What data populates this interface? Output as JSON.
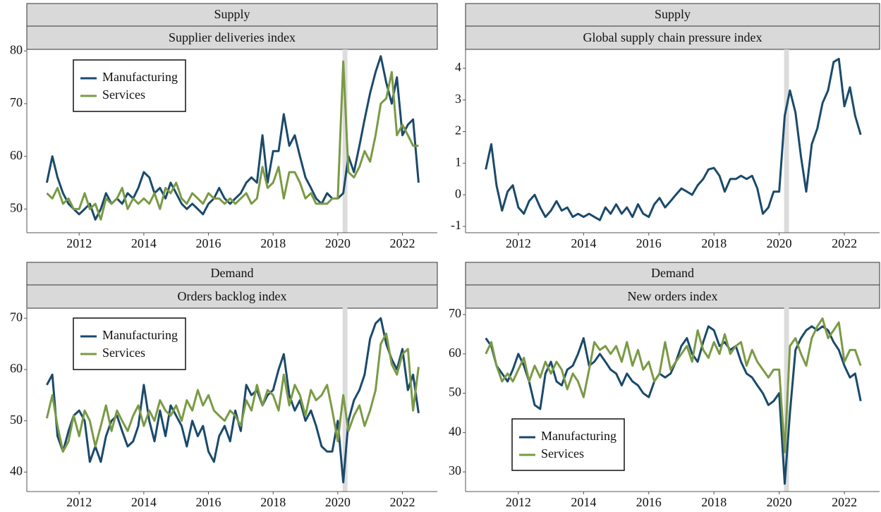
{
  "chart_data": [
    {
      "type": "line",
      "title": "Supply",
      "subtitle": "Supplier deliveries index",
      "legend": "upper left",
      "highlight_x": [
        2020.15,
        2020.3
      ],
      "xlim": [
        2010.38,
        2023.08
      ],
      "xticks": [
        2012,
        2014,
        2016,
        2018,
        2020,
        2022
      ],
      "ylim": [
        45.5,
        80.3
      ],
      "yticks": [
        50,
        60,
        70,
        80
      ],
      "x": [
        2011,
        2011.17,
        2011.33,
        2011.5,
        2011.67,
        2011.83,
        2012,
        2012.17,
        2012.33,
        2012.5,
        2012.67,
        2012.83,
        2013,
        2013.17,
        2013.33,
        2013.5,
        2013.67,
        2013.83,
        2014,
        2014.17,
        2014.33,
        2014.5,
        2014.67,
        2014.83,
        2015,
        2015.17,
        2015.33,
        2015.5,
        2015.67,
        2015.83,
        2016,
        2016.17,
        2016.33,
        2016.5,
        2016.67,
        2016.83,
        2017,
        2017.17,
        2017.33,
        2017.5,
        2017.67,
        2017.83,
        2018,
        2018.17,
        2018.33,
        2018.5,
        2018.67,
        2018.83,
        2019,
        2019.17,
        2019.33,
        2019.5,
        2019.67,
        2019.83,
        2020,
        2020.17,
        2020.33,
        2020.5,
        2020.67,
        2020.83,
        2021,
        2021.17,
        2021.33,
        2021.5,
        2021.67,
        2021.83,
        2022,
        2022.17,
        2022.33,
        2022.5
      ],
      "series": [
        {
          "name": "Manufacturing",
          "color": "#1a4a6b",
          "values": [
            55,
            60,
            56,
            53,
            51,
            50,
            49,
            50,
            51,
            48,
            50,
            53,
            51,
            52,
            51,
            53,
            52,
            54,
            57,
            56,
            53,
            54,
            52,
            55,
            53,
            51,
            50,
            51,
            50,
            49,
            51,
            52,
            54,
            52,
            51,
            52,
            53,
            55,
            56,
            55,
            64,
            55,
            61,
            61,
            68,
            62,
            64,
            60,
            56,
            54,
            52,
            51,
            53,
            52,
            52,
            53,
            60,
            57,
            62,
            67,
            72,
            76,
            79,
            74,
            70,
            75,
            64,
            66,
            67,
            55
          ]
        },
        {
          "name": "Services",
          "color": "#7a9a45",
          "values": [
            53,
            52,
            54,
            51,
            52,
            50,
            50,
            53,
            50,
            51,
            48,
            52,
            51,
            52,
            54,
            50,
            52,
            51,
            52,
            51,
            53,
            50,
            54,
            53,
            55,
            52,
            51,
            53,
            52,
            51,
            53,
            52,
            52,
            51,
            52,
            51,
            52,
            53,
            51,
            52,
            58,
            54,
            55,
            58,
            52,
            57,
            57,
            55,
            52,
            53,
            51,
            51,
            51,
            52,
            52,
            78,
            57,
            56,
            58,
            61,
            59,
            64,
            70,
            71,
            76,
            64,
            66,
            64,
            62,
            62
          ]
        }
      ]
    },
    {
      "type": "line",
      "title": "Supply",
      "subtitle": "Global supply chain pressure index",
      "highlight_x": [
        2020.15,
        2020.3
      ],
      "color": "#1a4a6b",
      "xlim": [
        2010.38,
        2023.08
      ],
      "xticks": [
        2012,
        2014,
        2016,
        2018,
        2020,
        2022
      ],
      "ylim": [
        -1.2,
        4.6
      ],
      "yticks": [
        -1,
        0,
        1,
        2,
        3,
        4
      ],
      "x": [
        2011,
        2011.17,
        2011.33,
        2011.5,
        2011.67,
        2011.83,
        2012,
        2012.17,
        2012.33,
        2012.5,
        2012.67,
        2012.83,
        2013,
        2013.17,
        2013.33,
        2013.5,
        2013.67,
        2013.83,
        2014,
        2014.17,
        2014.33,
        2014.5,
        2014.67,
        2014.83,
        2015,
        2015.17,
        2015.33,
        2015.5,
        2015.67,
        2015.83,
        2016,
        2016.17,
        2016.33,
        2016.5,
        2016.67,
        2016.83,
        2017,
        2017.17,
        2017.33,
        2017.5,
        2017.67,
        2017.83,
        2018,
        2018.17,
        2018.33,
        2018.5,
        2018.67,
        2018.83,
        2019,
        2019.17,
        2019.33,
        2019.5,
        2019.67,
        2019.83,
        2020,
        2020.17,
        2020.33,
        2020.5,
        2020.67,
        2020.83,
        2021,
        2021.17,
        2021.33,
        2021.5,
        2021.67,
        2021.83,
        2022,
        2022.17,
        2022.33,
        2022.5
      ],
      "values": [
        0.8,
        1.6,
        0.3,
        -0.5,
        0.1,
        0.3,
        -0.4,
        -0.6,
        -0.2,
        0.0,
        -0.4,
        -0.7,
        -0.5,
        -0.2,
        -0.5,
        -0.4,
        -0.7,
        -0.6,
        -0.7,
        -0.6,
        -0.7,
        -0.8,
        -0.4,
        -0.6,
        -0.3,
        -0.6,
        -0.4,
        -0.7,
        -0.3,
        -0.6,
        -0.7,
        -0.3,
        -0.1,
        -0.4,
        -0.2,
        0.0,
        0.2,
        0.1,
        0.0,
        0.3,
        0.5,
        0.8,
        0.85,
        0.6,
        0.1,
        0.5,
        0.5,
        0.6,
        0.5,
        0.6,
        0.2,
        -0.6,
        -0.4,
        0.1,
        0.1,
        2.5,
        3.3,
        2.6,
        1.2,
        0.1,
        1.6,
        2.1,
        2.9,
        3.3,
        4.2,
        4.3,
        2.8,
        3.4,
        2.5,
        1.9
      ]
    },
    {
      "type": "line",
      "title": "Demand",
      "subtitle": "Orders backlog index",
      "legend": "upper left",
      "highlight_x": [
        2020.15,
        2020.3
      ],
      "xlim": [
        2010.38,
        2023.08
      ],
      "xticks": [
        2012,
        2014,
        2016,
        2018,
        2020,
        2022
      ],
      "ylim": [
        36.2,
        72.1
      ],
      "yticks": [
        40,
        50,
        60,
        70
      ],
      "x": [
        2011,
        2011.17,
        2011.33,
        2011.5,
        2011.67,
        2011.83,
        2012,
        2012.17,
        2012.33,
        2012.5,
        2012.67,
        2012.83,
        2013,
        2013.17,
        2013.33,
        2013.5,
        2013.67,
        2013.83,
        2014,
        2014.17,
        2014.33,
        2014.5,
        2014.67,
        2014.83,
        2015,
        2015.17,
        2015.33,
        2015.5,
        2015.67,
        2015.83,
        2016,
        2016.17,
        2016.33,
        2016.5,
        2016.67,
        2016.83,
        2017,
        2017.17,
        2017.33,
        2017.5,
        2017.67,
        2017.83,
        2018,
        2018.17,
        2018.33,
        2018.5,
        2018.67,
        2018.83,
        2019,
        2019.17,
        2019.33,
        2019.5,
        2019.67,
        2019.83,
        2020,
        2020.17,
        2020.33,
        2020.5,
        2020.67,
        2020.83,
        2021,
        2021.17,
        2021.33,
        2021.5,
        2021.67,
        2021.83,
        2022,
        2022.17,
        2022.33,
        2022.5
      ],
      "series": [
        {
          "name": "Manufacturing",
          "color": "#1a4a6b",
          "values": [
            57,
            59,
            47,
            44,
            48,
            51,
            52,
            50,
            42,
            45,
            42,
            47,
            50,
            51,
            48,
            45,
            46,
            49,
            57,
            50,
            46,
            52,
            47,
            53,
            51,
            49,
            45,
            50,
            47,
            49,
            44,
            42,
            47,
            49,
            46,
            52,
            48,
            57,
            55,
            56,
            53,
            55,
            56,
            60,
            63,
            55,
            52,
            54,
            50,
            52,
            49,
            45,
            44,
            44,
            50,
            38,
            50,
            54,
            56,
            59,
            66,
            69,
            70,
            65,
            62,
            60,
            64,
            56,
            59,
            51.5
          ]
        },
        {
          "name": "Services",
          "color": "#7a9a45",
          "values": [
            50.5,
            55,
            49,
            44,
            46,
            51,
            47,
            52,
            50,
            45,
            49,
            53,
            48,
            52,
            50,
            48,
            51,
            53,
            49,
            52,
            50,
            54,
            52,
            51,
            53,
            50,
            54,
            52,
            56,
            53,
            55,
            52,
            51,
            50,
            52,
            51,
            49,
            54,
            52,
            57,
            53,
            56,
            55,
            52,
            59,
            53,
            57,
            55,
            51,
            56,
            54,
            55,
            57,
            52,
            46,
            55,
            48,
            51,
            53,
            49,
            52,
            56,
            65,
            67,
            61,
            59,
            63,
            64,
            52,
            60.5
          ]
        }
      ]
    },
    {
      "type": "line",
      "title": "Demand",
      "subtitle": "New orders index",
      "legend": "lower left",
      "highlight_x": [
        2020.15,
        2020.3
      ],
      "xlim": [
        2010.38,
        2023.08
      ],
      "xticks": [
        2012,
        2014,
        2016,
        2018,
        2020,
        2022
      ],
      "ylim": [
        25,
        71.8
      ],
      "yticks": [
        30,
        40,
        50,
        60,
        70
      ],
      "x": [
        2011,
        2011.17,
        2011.33,
        2011.5,
        2011.67,
        2011.83,
        2012,
        2012.17,
        2012.33,
        2012.5,
        2012.67,
        2012.83,
        2013,
        2013.17,
        2013.33,
        2013.5,
        2013.67,
        2013.83,
        2014,
        2014.17,
        2014.33,
        2014.5,
        2014.67,
        2014.83,
        2015,
        2015.17,
        2015.33,
        2015.5,
        2015.67,
        2015.83,
        2016,
        2016.17,
        2016.33,
        2016.5,
        2016.67,
        2016.83,
        2017,
        2017.17,
        2017.33,
        2017.5,
        2017.67,
        2017.83,
        2018,
        2018.17,
        2018.33,
        2018.5,
        2018.67,
        2018.83,
        2019,
        2019.17,
        2019.33,
        2019.5,
        2019.67,
        2019.83,
        2020,
        2020.17,
        2020.33,
        2020.5,
        2020.67,
        2020.83,
        2021,
        2021.17,
        2021.33,
        2021.5,
        2021.67,
        2021.83,
        2022,
        2022.17,
        2022.33,
        2022.5
      ],
      "series": [
        {
          "name": "Manufacturing",
          "color": "#1a4a6b",
          "values": [
            64,
            62,
            57,
            55,
            53,
            56,
            60,
            57,
            53,
            47,
            46,
            55,
            58,
            53,
            52,
            56,
            57,
            60,
            64,
            57,
            58,
            60,
            58,
            56,
            55,
            52,
            55,
            53,
            52,
            50,
            49,
            53,
            55,
            54,
            55,
            58,
            62,
            64,
            60,
            58,
            63,
            67,
            66,
            62,
            63,
            61,
            62,
            58,
            55,
            54,
            52,
            50,
            47,
            48,
            50,
            27,
            45,
            61,
            64,
            66,
            67,
            66,
            67,
            66,
            63,
            61,
            57,
            54,
            55,
            48
          ]
        },
        {
          "name": "Services",
          "color": "#7a9a45",
          "values": [
            60,
            63,
            57,
            53,
            55,
            53,
            56,
            59,
            53,
            57,
            54,
            58,
            55,
            58,
            56,
            51,
            55,
            53,
            49,
            56,
            63,
            61,
            62,
            60,
            62,
            58,
            63,
            57,
            61,
            56,
            58,
            53,
            55,
            63,
            56,
            58,
            60,
            62,
            58,
            66,
            61,
            59,
            63,
            60,
            65,
            60,
            62,
            63,
            57,
            61,
            58,
            56,
            54,
            56,
            56,
            35,
            62,
            64,
            60,
            57,
            64,
            67,
            69,
            64,
            66,
            68,
            58,
            61,
            61,
            57
          ]
        }
      ]
    }
  ]
}
